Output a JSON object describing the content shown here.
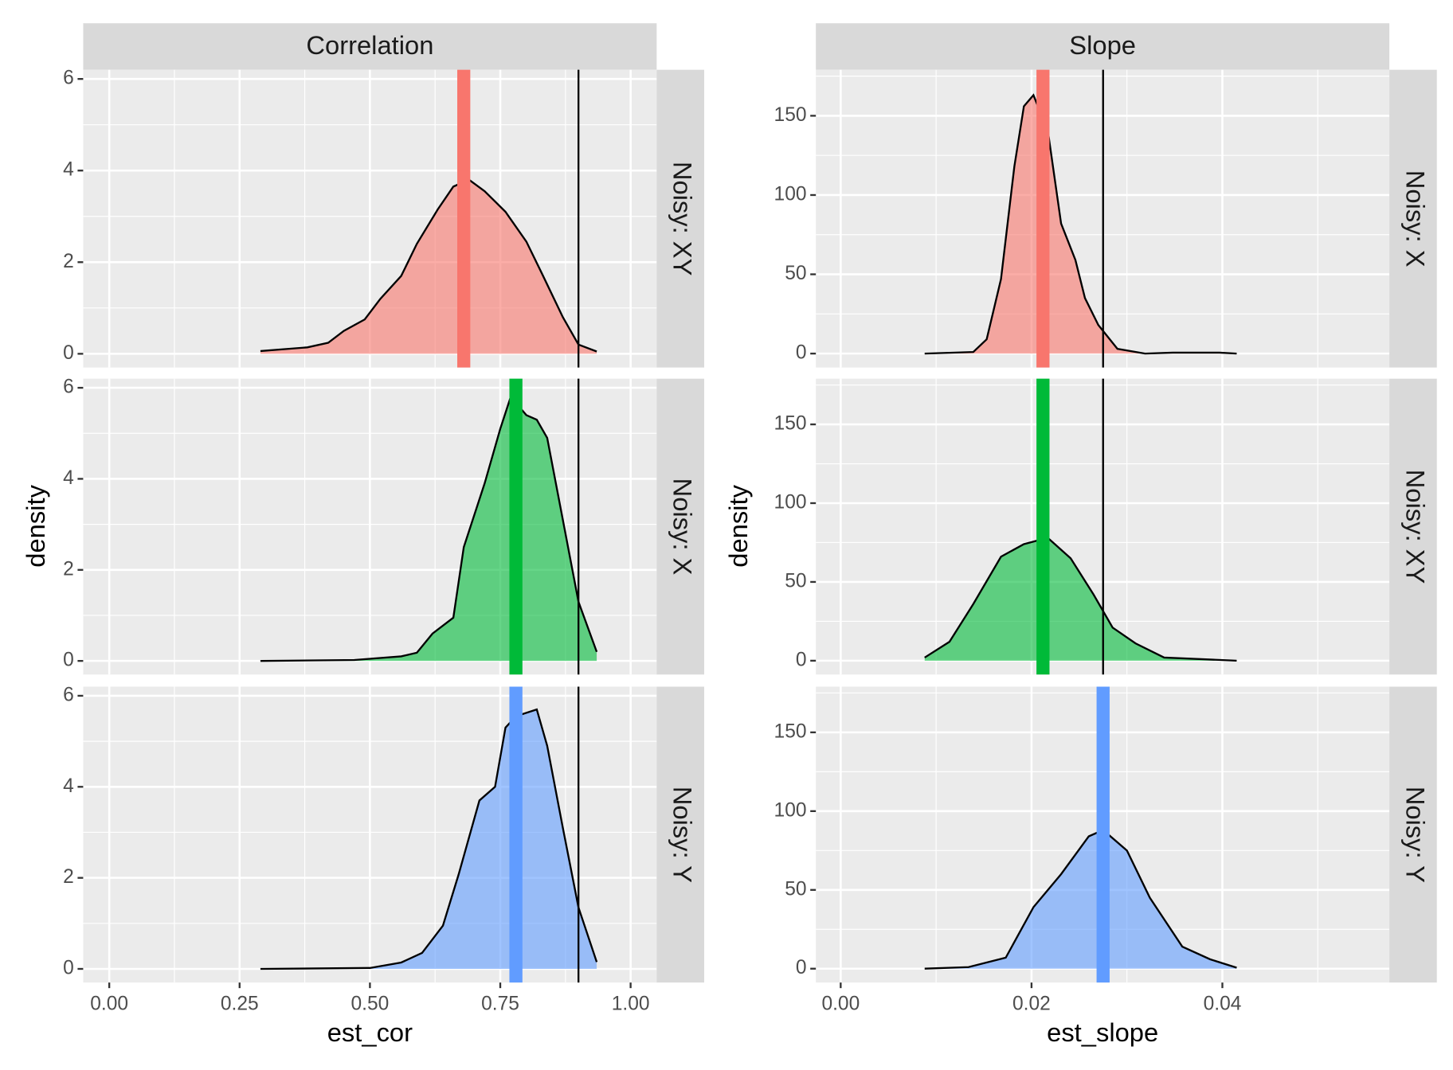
{
  "chart_data": [
    {
      "type": "density",
      "title": "Correlation",
      "x_label": "est_cor",
      "y_label": "density",
      "xlim": [
        -0.05,
        1.05
      ],
      "ylim": [
        -0.3,
        6.2
      ],
      "grid": true,
      "xticks": [
        {
          "value": 0,
          "label": "0.00"
        },
        {
          "value": 0.25,
          "label": "0.25"
        },
        {
          "value": 0.5,
          "label": "0.50"
        },
        {
          "value": 0.75,
          "label": "0.75"
        },
        {
          "value": 1,
          "label": "1.00"
        }
      ],
      "yticks": [
        0,
        2,
        4,
        6
      ],
      "facets": [
        {
          "label": "Noisy: XY",
          "color": "#f8766d",
          "x": [
            0.29,
            0.38,
            0.42,
            0.45,
            0.49,
            0.52,
            0.56,
            0.59,
            0.63,
            0.66,
            0.69,
            0.72,
            0.76,
            0.8,
            0.83,
            0.87,
            0.9,
            0.935
          ],
          "values": [
            0.06,
            0.14,
            0.24,
            0.5,
            0.75,
            1.2,
            1.7,
            2.4,
            3.15,
            3.65,
            3.8,
            3.55,
            3.1,
            2.45,
            1.75,
            0.8,
            0.2,
            0.05
          ],
          "mean": 0.68,
          "reference": 0.9
        },
        {
          "label": "Noisy: X",
          "color": "#00ba38",
          "x": [
            0.29,
            0.47,
            0.56,
            0.59,
            0.62,
            0.66,
            0.68,
            0.72,
            0.75,
            0.77,
            0.8,
            0.82,
            0.84,
            0.87,
            0.9,
            0.935
          ],
          "values": [
            0,
            0.02,
            0.1,
            0.18,
            0.6,
            0.95,
            2.5,
            3.9,
            5.1,
            5.8,
            5.4,
            5.3,
            4.9,
            3.1,
            1.3,
            0.2
          ],
          "mean": 0.78,
          "reference": 0.9
        },
        {
          "label": "Noisy: Y",
          "color": "#619cff",
          "x": [
            0.29,
            0.5,
            0.56,
            0.6,
            0.64,
            0.67,
            0.71,
            0.74,
            0.76,
            0.78,
            0.82,
            0.84,
            0.87,
            0.9,
            0.935
          ],
          "values": [
            0,
            0.02,
            0.14,
            0.35,
            0.95,
            2.07,
            3.7,
            4.0,
            5.3,
            5.55,
            5.7,
            4.9,
            3.1,
            1.35,
            0.15
          ],
          "mean": 0.78,
          "reference": 0.9
        }
      ]
    },
    {
      "type": "density",
      "title": "Slope",
      "x_label": "est_slope",
      "y_label": "density",
      "xlim": [
        -0.0026,
        0.0575
      ],
      "ylim": [
        -8.8,
        179
      ],
      "grid": true,
      "xticks": [
        {
          "value": 0,
          "label": "0.00"
        },
        {
          "value": 0.02,
          "label": "0.02"
        },
        {
          "value": 0.04,
          "label": "0.04"
        }
      ],
      "yticks": [
        0,
        50,
        100,
        150
      ],
      "facets": [
        {
          "label": "Noisy: X",
          "color": "#f8766d",
          "x": [
            0.0088,
            0.0139,
            0.0153,
            0.0168,
            0.0182,
            0.0192,
            0.0202,
            0.0217,
            0.0231,
            0.0246,
            0.0256,
            0.027,
            0.029,
            0.0319,
            0.0348,
            0.0397,
            0.0415
          ],
          "values": [
            0,
            1,
            9,
            47,
            118,
            156,
            163,
            141,
            82,
            59,
            35,
            18,
            3,
            0,
            0.6,
            0.6,
            0
          ],
          "mean": 0.0212,
          "reference": 0.0275
        },
        {
          "label": "Noisy: XY",
          "color": "#00ba38",
          "x": [
            0.0088,
            0.0114,
            0.0139,
            0.0168,
            0.0192,
            0.0217,
            0.0241,
            0.0265,
            0.0285,
            0.0309,
            0.0339,
            0.0378,
            0.0415
          ],
          "values": [
            2,
            12,
            36,
            66,
            74,
            78,
            65,
            42,
            21,
            11,
            2,
            1,
            0
          ],
          "mean": 0.0212,
          "reference": 0.0275
        },
        {
          "label": "Noisy: Y",
          "color": "#619cff",
          "x": [
            0.0088,
            0.0134,
            0.0173,
            0.0202,
            0.0231,
            0.026,
            0.0275,
            0.03,
            0.0324,
            0.0358,
            0.0387,
            0.0415
          ],
          "values": [
            0,
            1,
            7,
            39,
            60,
            84,
            88,
            75,
            45,
            14,
            6,
            0.6
          ],
          "mean": 0.0275
        }
      ]
    }
  ]
}
